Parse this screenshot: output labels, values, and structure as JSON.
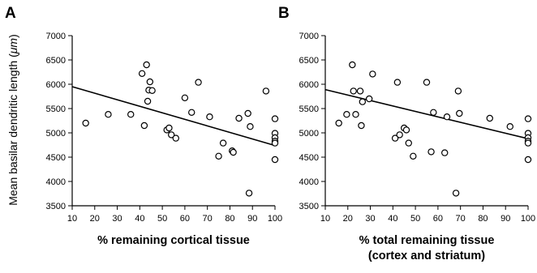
{
  "ylabel_prefix": "Mean basilar dendritic length (",
  "ylabel_unit": "μm",
  "ylabel_suffix": ")",
  "chart_data": [
    {
      "panel": "A",
      "type": "scatter",
      "xlabel": "% remaining cortical tissue",
      "xlabel_line2": "",
      "ylabel": "Mean basilar dendritic length (μm)",
      "xlim": [
        10,
        100
      ],
      "ylim": [
        3500,
        7000
      ],
      "xticks": [
        10,
        20,
        30,
        40,
        50,
        60,
        70,
        80,
        90,
        100
      ],
      "yticks": [
        3500,
        4000,
        4500,
        5000,
        5500,
        6000,
        6500,
        7000
      ],
      "grid": false,
      "trendline": {
        "x": [
          10,
          100
        ],
        "y": [
          5950,
          4740
        ]
      },
      "points": [
        {
          "x": 16,
          "y": 5200
        },
        {
          "x": 26,
          "y": 5380
        },
        {
          "x": 36,
          "y": 5380
        },
        {
          "x": 41,
          "y": 6220
        },
        {
          "x": 42,
          "y": 5150
        },
        {
          "x": 43,
          "y": 6400
        },
        {
          "x": 43.5,
          "y": 5650
        },
        {
          "x": 44,
          "y": 5880
        },
        {
          "x": 44.5,
          "y": 6050
        },
        {
          "x": 45.5,
          "y": 5870
        },
        {
          "x": 52,
          "y": 5060
        },
        {
          "x": 53,
          "y": 5100
        },
        {
          "x": 54,
          "y": 4960
        },
        {
          "x": 56,
          "y": 4890
        },
        {
          "x": 60,
          "y": 5720
        },
        {
          "x": 63,
          "y": 5420
        },
        {
          "x": 66,
          "y": 6040
        },
        {
          "x": 71,
          "y": 5330
        },
        {
          "x": 75,
          "y": 4520
        },
        {
          "x": 77,
          "y": 4790
        },
        {
          "x": 81,
          "y": 4630
        },
        {
          "x": 81.5,
          "y": 4600
        },
        {
          "x": 84,
          "y": 5300
        },
        {
          "x": 88,
          "y": 5400
        },
        {
          "x": 88.5,
          "y": 3760
        },
        {
          "x": 89,
          "y": 5130
        },
        {
          "x": 96,
          "y": 5860
        },
        {
          "x": 100,
          "y": 5290
        },
        {
          "x": 100,
          "y": 4990
        },
        {
          "x": 100,
          "y": 4900
        },
        {
          "x": 100,
          "y": 4830
        },
        {
          "x": 100,
          "y": 4790
        },
        {
          "x": 100,
          "y": 4450
        }
      ]
    },
    {
      "panel": "B",
      "type": "scatter",
      "xlabel": "% total remaining tissue",
      "xlabel_line2": "(cortex and striatum)",
      "ylabel": "",
      "xlim": [
        10,
        100
      ],
      "ylim": [
        3500,
        7000
      ],
      "xticks": [
        10,
        20,
        30,
        40,
        50,
        60,
        70,
        80,
        90,
        100
      ],
      "yticks": [
        3500,
        4000,
        4500,
        5000,
        5500,
        6000,
        6500,
        7000
      ],
      "grid": false,
      "trendline": {
        "x": [
          10,
          100
        ],
        "y": [
          5890,
          4880
        ]
      },
      "points": [
        {
          "x": 16,
          "y": 5200
        },
        {
          "x": 19.5,
          "y": 5380
        },
        {
          "x": 22,
          "y": 6400
        },
        {
          "x": 22.5,
          "y": 5860
        },
        {
          "x": 23.5,
          "y": 5380
        },
        {
          "x": 25.5,
          "y": 5860
        },
        {
          "x": 26,
          "y": 5150
        },
        {
          "x": 26.5,
          "y": 5640
        },
        {
          "x": 29.5,
          "y": 5700
        },
        {
          "x": 31,
          "y": 6210
        },
        {
          "x": 41,
          "y": 4890
        },
        {
          "x": 42,
          "y": 6040
        },
        {
          "x": 43,
          "y": 4960
        },
        {
          "x": 45,
          "y": 5100
        },
        {
          "x": 46,
          "y": 5060
        },
        {
          "x": 47,
          "y": 4790
        },
        {
          "x": 49,
          "y": 4520
        },
        {
          "x": 55,
          "y": 6040
        },
        {
          "x": 57,
          "y": 4610
        },
        {
          "x": 58,
          "y": 5420
        },
        {
          "x": 63,
          "y": 4590
        },
        {
          "x": 64,
          "y": 5330
        },
        {
          "x": 68,
          "y": 3760
        },
        {
          "x": 69,
          "y": 5860
        },
        {
          "x": 69.5,
          "y": 5400
        },
        {
          "x": 83,
          "y": 5300
        },
        {
          "x": 92,
          "y": 5130
        },
        {
          "x": 100,
          "y": 5290
        },
        {
          "x": 100,
          "y": 4990
        },
        {
          "x": 100,
          "y": 4900
        },
        {
          "x": 100,
          "y": 4830
        },
        {
          "x": 100,
          "y": 4790
        },
        {
          "x": 100,
          "y": 4450
        }
      ]
    }
  ]
}
